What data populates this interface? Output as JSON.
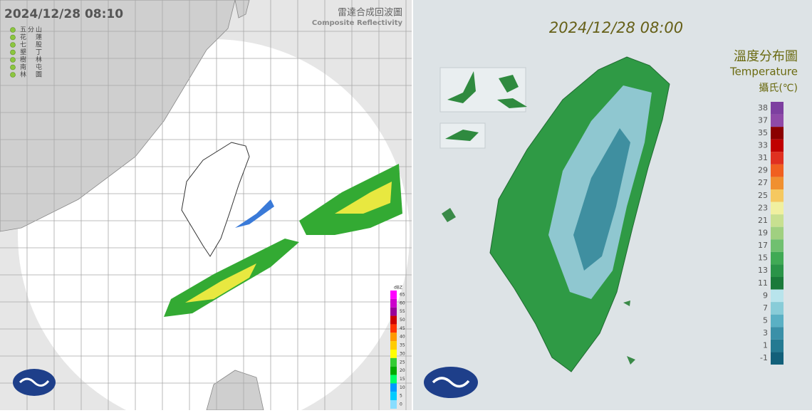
{
  "left_panel": {
    "timestamp": "2024/12/28 08:10",
    "title": "雷達合成回波圖",
    "subtitle": "Composite Reflectivity",
    "stations": [
      "五分山",
      "花　蓮",
      "七　股",
      "墾　丁",
      "樹　林",
      "南　屯",
      "林　園"
    ],
    "scale": {
      "unit": "dBZ",
      "labels": [
        65,
        60,
        55,
        50,
        45,
        40,
        35,
        30,
        25,
        20,
        15,
        10,
        5,
        0
      ]
    }
  },
  "right_panel": {
    "timestamp": "2024/12/28 08:00",
    "title": "溫度分布圖",
    "subtitle": "Temperature",
    "unit": "攝氏(℃)",
    "scale": {
      "labels": [
        38,
        37,
        35,
        33,
        31,
        29,
        27,
        25,
        23,
        21,
        19,
        17,
        15,
        13,
        11,
        9,
        7,
        5,
        3,
        1,
        -1
      ]
    }
  }
}
